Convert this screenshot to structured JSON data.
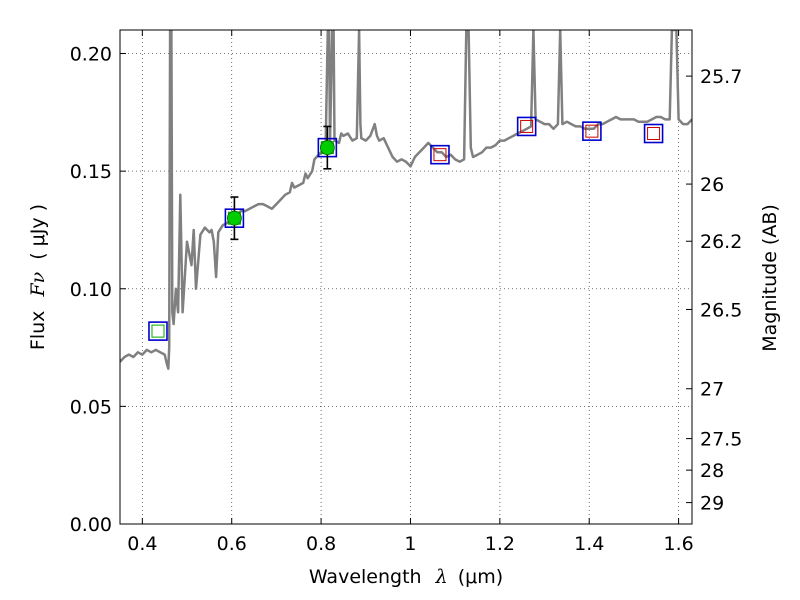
{
  "chart_data": {
    "type": "scatter",
    "xlabel_text": "Wavelength",
    "xlabel_symbol": "λ",
    "xlabel_unit": "(μm)",
    "ylabel_text": "Flux",
    "ylabel_symbol": "Fν",
    "ylabel_unit": "( μJy )",
    "y2label": "Magnitude (AB)",
    "xlim": [
      0.35,
      1.63
    ],
    "ylim": [
      0.0,
      0.21
    ],
    "x_ticks": [
      0.4,
      0.6,
      0.8,
      1.0,
      1.2,
      1.4,
      1.6
    ],
    "x_tick_labels": [
      "0.4",
      "0.6",
      "0.8",
      "1",
      "1.2",
      "1.4",
      "1.6"
    ],
    "y_ticks": [
      0.0,
      0.05,
      0.1,
      0.15,
      0.2
    ],
    "y_tick_labels": [
      "0.00",
      "0.05",
      "0.10",
      "0.15",
      "0.20"
    ],
    "y2_ticks": [
      {
        "flux": 0.1904,
        "label": "25.7"
      },
      {
        "flux": 0.1445,
        "label": "26"
      },
      {
        "flux": 0.1202,
        "label": "26.2"
      },
      {
        "flux": 0.0912,
        "label": "26.5"
      },
      {
        "flux": 0.0575,
        "label": "27"
      },
      {
        "flux": 0.0363,
        "label": "27.5"
      },
      {
        "flux": 0.0229,
        "label": "28"
      },
      {
        "flux": 0.0091,
        "label": "29"
      }
    ],
    "grid": true,
    "model_sed": {
      "color": "#808080",
      "points": [
        [
          0.35,
          0.069
        ],
        [
          0.36,
          0.071
        ],
        [
          0.37,
          0.072
        ],
        [
          0.38,
          0.071
        ],
        [
          0.39,
          0.073
        ],
        [
          0.4,
          0.072
        ],
        [
          0.41,
          0.074
        ],
        [
          0.42,
          0.073
        ],
        [
          0.43,
          0.074
        ],
        [
          0.44,
          0.073
        ],
        [
          0.45,
          0.072
        ],
        [
          0.455,
          0.068
        ],
        [
          0.458,
          0.066
        ],
        [
          0.46,
          0.075
        ],
        [
          0.462,
          0.21
        ],
        [
          0.465,
          0.21
        ],
        [
          0.467,
          0.09
        ],
        [
          0.47,
          0.085
        ],
        [
          0.475,
          0.1
        ],
        [
          0.48,
          0.09
        ],
        [
          0.485,
          0.14
        ],
        [
          0.49,
          0.09
        ],
        [
          0.5,
          0.12
        ],
        [
          0.51,
          0.11
        ],
        [
          0.515,
          0.125
        ],
        [
          0.52,
          0.1
        ],
        [
          0.53,
          0.123
        ],
        [
          0.54,
          0.126
        ],
        [
          0.55,
          0.124
        ],
        [
          0.555,
          0.125
        ],
        [
          0.56,
          0.12
        ],
        [
          0.565,
          0.105
        ],
        [
          0.57,
          0.124
        ],
        [
          0.58,
          0.127
        ],
        [
          0.59,
          0.128
        ],
        [
          0.6,
          0.13
        ],
        [
          0.61,
          0.131
        ],
        [
          0.62,
          0.133
        ],
        [
          0.63,
          0.133
        ],
        [
          0.64,
          0.134
        ],
        [
          0.65,
          0.135
        ],
        [
          0.66,
          0.136
        ],
        [
          0.67,
          0.136
        ],
        [
          0.68,
          0.135
        ],
        [
          0.69,
          0.134
        ],
        [
          0.7,
          0.136
        ],
        [
          0.71,
          0.138
        ],
        [
          0.72,
          0.14
        ],
        [
          0.73,
          0.141
        ],
        [
          0.735,
          0.145
        ],
        [
          0.74,
          0.143
        ],
        [
          0.75,
          0.144
        ],
        [
          0.76,
          0.145
        ],
        [
          0.765,
          0.149
        ],
        [
          0.77,
          0.147
        ],
        [
          0.78,
          0.15
        ],
        [
          0.785,
          0.155
        ],
        [
          0.79,
          0.156
        ],
        [
          0.8,
          0.158
        ],
        [
          0.81,
          0.16
        ],
        [
          0.815,
          0.21
        ],
        [
          0.818,
          0.21
        ],
        [
          0.82,
          0.162
        ],
        [
          0.825,
          0.21
        ],
        [
          0.828,
          0.21
        ],
        [
          0.83,
          0.163
        ],
        [
          0.84,
          0.162
        ],
        [
          0.845,
          0.166
        ],
        [
          0.85,
          0.165
        ],
        [
          0.86,
          0.166
        ],
        [
          0.87,
          0.163
        ],
        [
          0.88,
          0.164
        ],
        [
          0.885,
          0.21
        ],
        [
          0.888,
          0.17
        ],
        [
          0.89,
          0.164
        ],
        [
          0.9,
          0.163
        ],
        [
          0.91,
          0.165
        ],
        [
          0.92,
          0.17
        ],
        [
          0.925,
          0.165
        ],
        [
          0.93,
          0.163
        ],
        [
          0.94,
          0.164
        ],
        [
          0.95,
          0.16
        ],
        [
          0.96,
          0.156
        ],
        [
          0.97,
          0.154
        ],
        [
          0.98,
          0.155
        ],
        [
          0.99,
          0.154
        ],
        [
          1.0,
          0.152
        ],
        [
          1.01,
          0.156
        ],
        [
          1.02,
          0.158
        ],
        [
          1.03,
          0.16
        ],
        [
          1.04,
          0.162
        ],
        [
          1.05,
          0.16
        ],
        [
          1.06,
          0.158
        ],
        [
          1.07,
          0.158
        ],
        [
          1.08,
          0.156
        ],
        [
          1.09,
          0.157
        ],
        [
          1.1,
          0.155
        ],
        [
          1.11,
          0.154
        ],
        [
          1.12,
          0.155
        ],
        [
          1.125,
          0.21
        ],
        [
          1.13,
          0.21
        ],
        [
          1.135,
          0.16
        ],
        [
          1.14,
          0.156
        ],
        [
          1.15,
          0.157
        ],
        [
          1.16,
          0.158
        ],
        [
          1.17,
          0.16
        ],
        [
          1.18,
          0.16
        ],
        [
          1.19,
          0.161
        ],
        [
          1.2,
          0.163
        ],
        [
          1.21,
          0.163
        ],
        [
          1.22,
          0.164
        ],
        [
          1.23,
          0.165
        ],
        [
          1.24,
          0.166
        ],
        [
          1.25,
          0.167
        ],
        [
          1.26,
          0.168
        ],
        [
          1.27,
          0.169
        ],
        [
          1.275,
          0.21
        ],
        [
          1.28,
          0.172
        ],
        [
          1.29,
          0.171
        ],
        [
          1.3,
          0.17
        ],
        [
          1.31,
          0.17
        ],
        [
          1.32,
          0.168
        ],
        [
          1.33,
          0.17
        ],
        [
          1.335,
          0.21
        ],
        [
          1.34,
          0.17
        ],
        [
          1.35,
          0.171
        ],
        [
          1.36,
          0.17
        ],
        [
          1.37,
          0.169
        ],
        [
          1.38,
          0.169
        ],
        [
          1.39,
          0.168
        ],
        [
          1.4,
          0.168
        ],
        [
          1.41,
          0.168
        ],
        [
          1.42,
          0.17
        ],
        [
          1.43,
          0.17
        ],
        [
          1.44,
          0.171
        ],
        [
          1.45,
          0.172
        ],
        [
          1.46,
          0.173
        ],
        [
          1.47,
          0.172
        ],
        [
          1.48,
          0.172
        ],
        [
          1.49,
          0.172
        ],
        [
          1.5,
          0.172
        ],
        [
          1.51,
          0.171
        ],
        [
          1.52,
          0.171
        ],
        [
          1.53,
          0.171
        ],
        [
          1.54,
          0.172
        ],
        [
          1.55,
          0.173
        ],
        [
          1.56,
          0.173
        ],
        [
          1.57,
          0.172
        ],
        [
          1.58,
          0.172
        ],
        [
          1.585,
          0.21
        ],
        [
          1.59,
          0.21
        ],
        [
          1.595,
          0.21
        ],
        [
          1.6,
          0.172
        ],
        [
          1.61,
          0.17
        ],
        [
          1.62,
          0.17
        ],
        [
          1.63,
          0.172
        ]
      ]
    },
    "model_bands": [
      {
        "x": 0.435,
        "y": 0.082,
        "box_color": "#0000cc",
        "inner_color": "#00aa00"
      },
      {
        "x": 0.606,
        "y": 0.13,
        "box_color": "#0000cc",
        "inner_color": "#00aa00"
      },
      {
        "x": 0.814,
        "y": 0.16,
        "box_color": "#0000cc",
        "inner_color": "#00aa00"
      },
      {
        "x": 1.066,
        "y": 0.157,
        "box_color": "#0000cc",
        "inner_color": "#cc0000"
      },
      {
        "x": 1.26,
        "y": 0.169,
        "box_color": "#0000cc",
        "inner_color": "#cc0000"
      },
      {
        "x": 1.406,
        "y": 0.167,
        "box_color": "#0000cc",
        "inner_color": "#cc0000"
      },
      {
        "x": 1.544,
        "y": 0.166,
        "box_color": "#0000cc",
        "inner_color": "#cc0000"
      }
    ],
    "observed": [
      {
        "x": 0.606,
        "y": 0.13,
        "err": 0.009,
        "color": "#00cc00"
      },
      {
        "x": 0.814,
        "y": 0.16,
        "err": 0.009,
        "color": "#00cc00"
      }
    ]
  }
}
